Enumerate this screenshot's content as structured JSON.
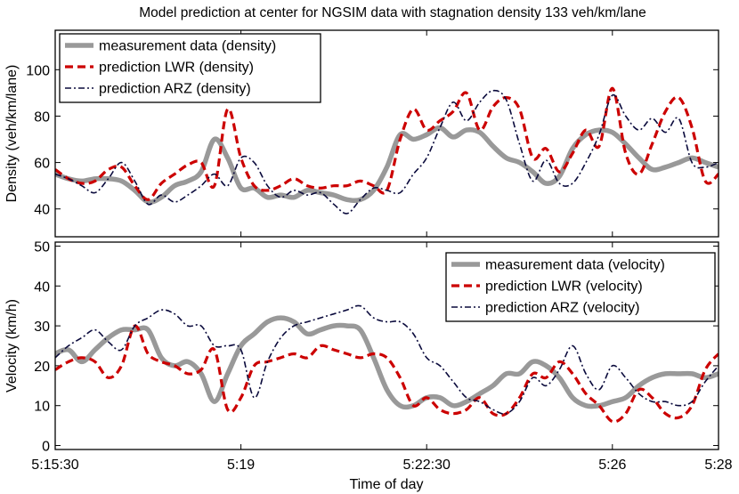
{
  "title": "Model prediction at center for NGSIM data with stagnation density 133 veh/km/lane",
  "colors": {
    "measurement": "#999999",
    "lwr": "#cc0000",
    "arz": "#0a0a3c"
  },
  "chart_data": [
    {
      "type": "line",
      "ylabel": "Density (veh/km/lane)",
      "xlabel": "",
      "xlim": [
        0,
        12.5
      ],
      "ylim": [
        28,
        117
      ],
      "yticks": [
        40,
        60,
        80,
        100
      ],
      "xtick_values": [
        0,
        3.5,
        7,
        10.5,
        12.5
      ],
      "xtick_labels": [],
      "legend_position": "top-left",
      "x": [
        0,
        0.25,
        0.5,
        0.75,
        1,
        1.25,
        1.5,
        1.75,
        2,
        2.25,
        2.5,
        2.75,
        3,
        3.25,
        3.5,
        3.75,
        4,
        4.25,
        4.5,
        4.75,
        5,
        5.25,
        5.5,
        5.75,
        6,
        6.25,
        6.5,
        6.75,
        7,
        7.25,
        7.5,
        7.75,
        8,
        8.25,
        8.5,
        8.75,
        9,
        9.25,
        9.5,
        9.75,
        10,
        10.25,
        10.5,
        10.75,
        11,
        11.25,
        11.5,
        11.75,
        12,
        12.25,
        12.5
      ],
      "series": [
        {
          "name": "measurement data (density)",
          "values": [
            55,
            53,
            52,
            53,
            53,
            52,
            48,
            43,
            45,
            50,
            52,
            56,
            70,
            62,
            49,
            49,
            45,
            46,
            45,
            48,
            47,
            46,
            44,
            44,
            48,
            58,
            72,
            70,
            72,
            75,
            71,
            74,
            73,
            67,
            62,
            60,
            56,
            51,
            54,
            66,
            72,
            74,
            73,
            68,
            62,
            57,
            58,
            60,
            62,
            60,
            58
          ]
        },
        {
          "name": "prediction LWR (density)",
          "values": [
            57,
            53,
            51,
            52,
            57,
            58,
            50,
            44,
            51,
            55,
            59,
            60,
            50,
            83,
            62,
            50,
            48,
            50,
            53,
            50,
            49,
            50,
            50,
            52,
            50,
            48,
            70,
            83,
            74,
            78,
            82,
            90,
            74,
            84,
            88,
            83,
            62,
            66,
            56,
            64,
            74,
            67,
            92,
            64,
            55,
            68,
            82,
            88,
            75,
            52,
            55
          ]
        },
        {
          "name": "prediction ARZ (density)",
          "values": [
            55,
            53,
            50,
            47,
            53,
            60,
            52,
            42,
            46,
            43,
            46,
            50,
            55,
            50,
            62,
            60,
            50,
            45,
            48,
            46,
            47,
            42,
            38,
            44,
            49,
            48,
            47,
            55,
            62,
            75,
            86,
            78,
            86,
            91,
            87,
            68,
            52,
            61,
            51,
            51,
            60,
            72,
            89,
            80,
            74,
            79,
            73,
            79,
            60,
            58,
            60
          ]
        }
      ]
    },
    {
      "type": "line",
      "ylabel": "Velocity (km/h)",
      "xlabel": "Time of day",
      "xlim": [
        0,
        12.5
      ],
      "ylim": [
        -1,
        51
      ],
      "yticks": [
        0,
        10,
        20,
        30,
        40,
        50
      ],
      "xtick_values": [
        0,
        3.5,
        7,
        10.5,
        12.5
      ],
      "xtick_labels": [
        "5:15:30",
        "5:19",
        "5:22:30",
        "5:26",
        "5:28"
      ],
      "legend_position": "top-right",
      "x": [
        0,
        0.25,
        0.5,
        0.75,
        1,
        1.25,
        1.5,
        1.75,
        2,
        2.25,
        2.5,
        2.75,
        3,
        3.25,
        3.5,
        3.75,
        4,
        4.25,
        4.5,
        4.75,
        5,
        5.25,
        5.5,
        5.75,
        6,
        6.25,
        6.5,
        6.75,
        7,
        7.25,
        7.5,
        7.75,
        8,
        8.25,
        8.5,
        8.75,
        9,
        9.25,
        9.5,
        9.75,
        10,
        10.25,
        10.5,
        10.75,
        11,
        11.25,
        11.5,
        11.75,
        12,
        12.25,
        12.5
      ],
      "series": [
        {
          "name": "measurement data (velocity)",
          "values": [
            23,
            24,
            21,
            24,
            27,
            29,
            29,
            29,
            22,
            20,
            21,
            18,
            11,
            18,
            25,
            28,
            31,
            32,
            31,
            28,
            29,
            30,
            30,
            29,
            22,
            14,
            10,
            10,
            12,
            12,
            10,
            11,
            13,
            15,
            18,
            18,
            21,
            20,
            17,
            12,
            10,
            10,
            11,
            12,
            15,
            17,
            18,
            18,
            18,
            17,
            18
          ]
        },
        {
          "name": "prediction LWR (velocity)",
          "values": [
            19,
            21,
            22,
            21,
            17,
            20,
            30,
            23,
            21,
            20,
            18,
            19,
            24,
            9,
            12,
            20,
            21,
            22,
            23,
            22,
            25,
            24,
            23,
            22,
            23,
            22,
            17,
            10,
            12,
            9,
            8,
            9,
            12,
            8,
            8,
            12,
            18,
            17,
            21,
            18,
            13,
            10,
            6,
            8,
            14,
            12,
            8,
            7,
            10,
            19,
            23
          ]
        },
        {
          "name": "prediction ARZ (velocity)",
          "values": [
            22,
            25,
            27,
            29,
            26,
            24,
            30,
            32,
            34,
            33,
            30,
            30,
            25,
            25,
            24,
            12,
            21,
            27,
            30,
            31,
            32,
            33,
            34,
            35,
            32,
            31,
            31,
            28,
            22,
            20,
            16,
            12,
            11,
            9,
            8,
            11,
            17,
            15,
            19,
            25,
            18,
            14,
            20,
            17,
            13,
            11,
            11,
            10,
            11,
            16,
            20
          ]
        }
      ]
    }
  ]
}
